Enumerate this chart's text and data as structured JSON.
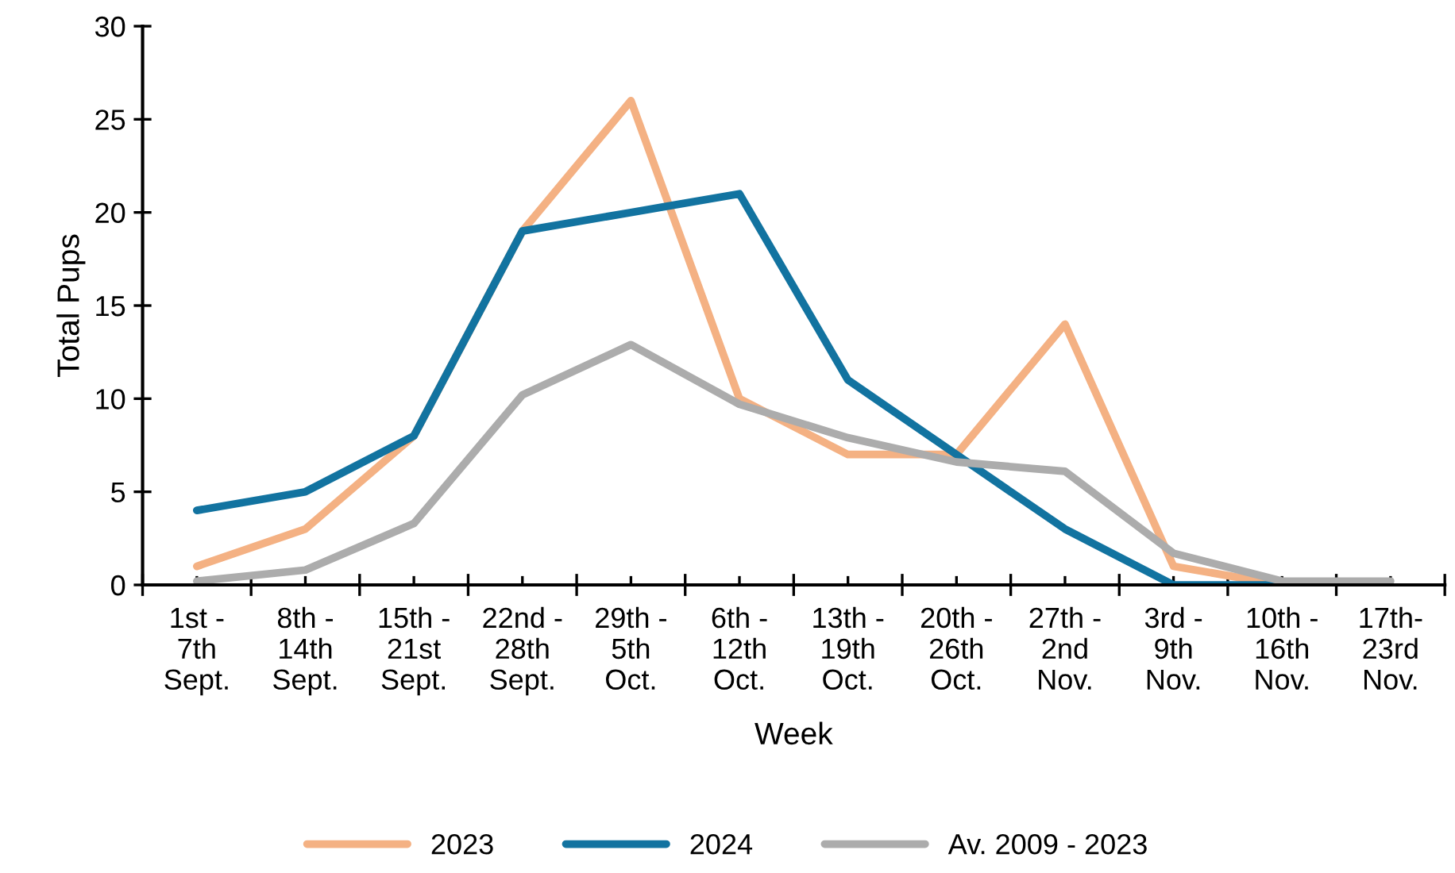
{
  "chart_data": {
    "type": "line",
    "xlabel": "Week",
    "ylabel": "Total Pups",
    "categories": [
      "1st -\n7th\nSept.",
      "8th -\n14th\nSept.",
      "15th -\n21st\nSept.",
      "22nd -\n28th\nSept.",
      "29th -\n5th\nOct.",
      "6th -\n12th\nOct.",
      "13th -\n19th\nOct.",
      "20th -\n26th\nOct.",
      "27th -\n2nd\nNov.",
      "3rd -\n9th\nNov.",
      "10th -\n16th\nNov.",
      "17th-\n23rd\nNov."
    ],
    "series": [
      {
        "name": "2023",
        "color": "#f4b183",
        "values": [
          1,
          3,
          8,
          19,
          26,
          10,
          7,
          7,
          14,
          1,
          0,
          null
        ]
      },
      {
        "name": "2024",
        "color": "#1273a0",
        "values": [
          4,
          5,
          8,
          19,
          20,
          21,
          11,
          7,
          3,
          0,
          0,
          null
        ]
      },
      {
        "name": "Av. 2009 - 2023",
        "color": "#acacac",
        "values": [
          0.2,
          0.8,
          3.3,
          10.2,
          12.9,
          9.7,
          7.9,
          6.6,
          6.1,
          1.7,
          0.2,
          0.2
        ]
      }
    ],
    "ylim": [
      0,
      30
    ],
    "yticks": [
      0,
      5,
      10,
      15,
      20,
      25,
      30
    ],
    "grid": false,
    "legend": "bottom",
    "marker": "none",
    "line_style": "solid"
  }
}
